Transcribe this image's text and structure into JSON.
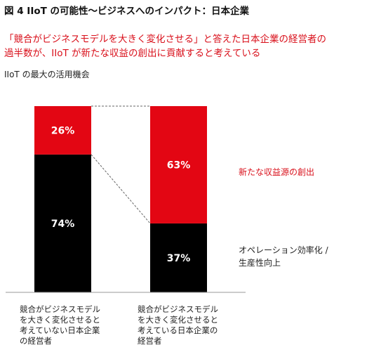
{
  "figure": {
    "title": "図 4  IIoT の可能性〜ビジネスへのインパクト：日本企業",
    "subtitle_line1": "「競合がビジネスモデルを大きく変化させる」と答えた日本企業の経営者の",
    "subtitle_line2": "過半数が、IIoT が新たな収益の創出に貢献すると考えている",
    "section_label": "IIoT の最大の活用機会"
  },
  "colors": {
    "red": "#e30613",
    "black": "#000000",
    "accent_text": "#d9101b"
  },
  "chart_data": {
    "type": "bar",
    "stacked": true,
    "percent": true,
    "ylim": [
      0,
      100
    ],
    "grid": false,
    "categories": [
      [
        "競合がビジネスモデル",
        "を大きく変化させると",
        "考えていない日本企業",
        "の経営者"
      ],
      [
        "競合がビジネスモデル",
        "を大きく変化させると",
        "考えている日本企業の",
        "経営者"
      ]
    ],
    "series": [
      {
        "name": [
          "オペレーション効率化 /",
          "生産性向上"
        ],
        "color": "#000000",
        "values": [
          74,
          37
        ],
        "labels": [
          "74%",
          "37%"
        ]
      },
      {
        "name": [
          "新たな収益源の創出"
        ],
        "color": "#e30613",
        "values": [
          26,
          63
        ],
        "labels": [
          "26%",
          "63%"
        ]
      }
    ]
  }
}
